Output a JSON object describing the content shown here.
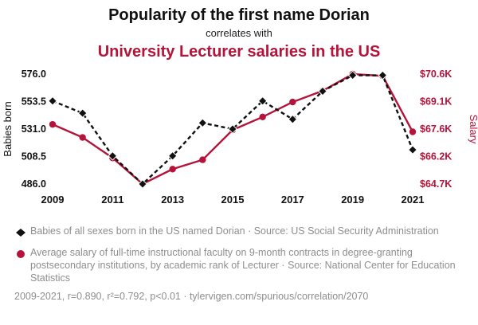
{
  "header": {
    "title": "Popularity of the first name Dorian",
    "subtitle": "correlates with",
    "title2": "University Lecturer salaries in the US"
  },
  "colors": {
    "accent": "#b4133a",
    "series_black": "#111111",
    "gray_text": "#8e8e8e"
  },
  "chart_data": {
    "type": "line",
    "x": [
      2009,
      2010,
      2011,
      2012,
      2013,
      2014,
      2015,
      2016,
      2017,
      2018,
      2019,
      2020,
      2021
    ],
    "x_ticks": [
      2009,
      2011,
      2013,
      2015,
      2017,
      2019,
      2021
    ],
    "series": [
      {
        "name": "Babies born (Dorian)",
        "axis": "left",
        "style": "dashed-diamond",
        "values": [
          554,
          544,
          509,
          486,
          509,
          536,
          531,
          554,
          539,
          562,
          575,
          575,
          514
        ]
      },
      {
        "name": "University Lecturer salary ($K)",
        "axis": "right",
        "style": "solid-circle",
        "values": [
          67.9,
          67.2,
          66.1,
          64.7,
          65.5,
          66.0,
          67.6,
          68.3,
          69.1,
          69.7,
          70.6,
          70.5,
          67.5
        ]
      }
    ],
    "left_axis": {
      "label": "Babies born",
      "ticks": [
        486.0,
        508.5,
        531.0,
        553.5,
        576.0
      ],
      "range": [
        486.0,
        576.0
      ]
    },
    "right_axis": {
      "label": "Salary",
      "ticks": [
        "$64.7K",
        "$66.2K",
        "$67.6K",
        "$69.1K",
        "$70.6K"
      ],
      "tick_values": [
        64.7,
        66.175,
        67.65,
        69.125,
        70.6
      ],
      "range": [
        64.7,
        70.6
      ]
    },
    "x_range": [
      2009,
      2021
    ],
    "grid": false,
    "legend_position": "bottom"
  },
  "legend": [
    {
      "marker": "diamond-icon",
      "text": "Babies of all sexes born in the US named Dorian · Source: US Social Security Administration"
    },
    {
      "marker": "circle-icon",
      "text": "Average salary of full-time instructional faculty on 9-month contracts in degree-granting postsecondary institutions, by academic rank of Lecturer · Source: National Center for Education Statistics"
    }
  ],
  "footer": "2009-2021, r=0.890, r²=0.792, p<0.01 · tylervigen.com/spurious/correlation/2070"
}
